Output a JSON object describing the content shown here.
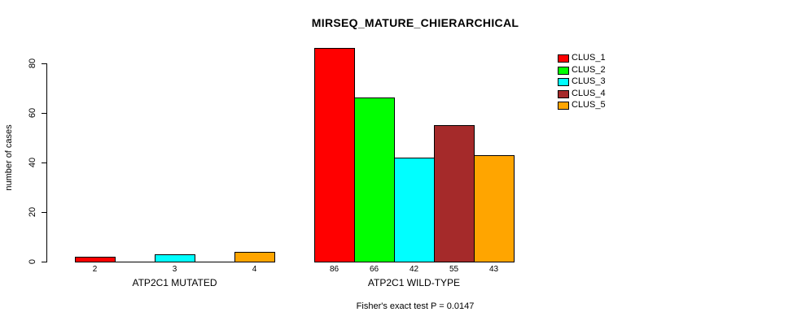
{
  "chart_data": {
    "type": "bar",
    "title": "MIRSEQ_MATURE_CHIERARCHICAL",
    "ylabel": "number of cases",
    "xlabel": "",
    "ylim": [
      0,
      80
    ],
    "yticks": [
      0,
      20,
      40,
      60,
      80
    ],
    "grid": false,
    "legend_position": "top-right",
    "bar_edge_color": "#000000",
    "background_color": "#FFFFFF",
    "series_names": [
      "CLUS_1",
      "CLUS_2",
      "CLUS_3",
      "CLUS_4",
      "CLUS_5"
    ],
    "series_colors": [
      "#FF0000",
      "#00FF00",
      "#00FFFF",
      "#A52A2A",
      "#FFA500"
    ],
    "legend": [
      {
        "label": "CLUS_1",
        "color": "#FF0000"
      },
      {
        "label": "CLUS_2",
        "color": "#00FF00"
      },
      {
        "label": "CLUS_3",
        "color": "#00FFFF"
      },
      {
        "label": "CLUS_4",
        "color": "#A52A2A"
      },
      {
        "label": "CLUS_5",
        "color": "#FFA500"
      }
    ],
    "groups": [
      {
        "label": "ATP2C1 MUTATED",
        "values": [
          2,
          0,
          3,
          0,
          4
        ],
        "bar_labels": [
          "2",
          "",
          "3",
          "",
          "4"
        ]
      },
      {
        "label": "ATP2C1 WILD-TYPE",
        "values": [
          86,
          66,
          42,
          55,
          43
        ],
        "bar_labels": [
          "86",
          "66",
          "42",
          "55",
          "43"
        ]
      }
    ],
    "annotation": "Fisher's exact test P = 0.0147"
  }
}
